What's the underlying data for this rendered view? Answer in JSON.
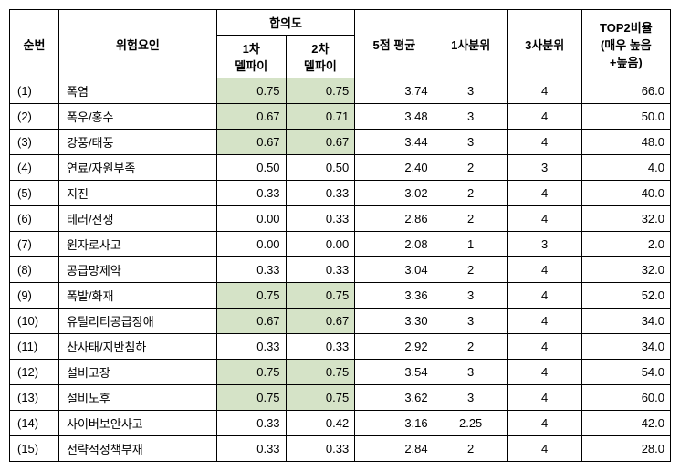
{
  "headers": {
    "num": "순번",
    "factor": "위험요인",
    "consensus": "합의도",
    "delphi1": "1차\n델파이",
    "delphi2": "2차\n델파이",
    "avg": "5점 평균",
    "q1": "1사분위",
    "q3": "3사분위",
    "top2": "TOP2비율\n(매우 높음\n+높음)"
  },
  "highlight_color": "#d5e3c7",
  "rows": [
    {
      "n": "(1)",
      "factor": "폭염",
      "d1": "0.75",
      "d2": "0.75",
      "avg": "3.74",
      "q1": "3",
      "q3": "4",
      "top2": "66.0",
      "hl1": true,
      "hl2": true
    },
    {
      "n": "(2)",
      "factor": "폭우/홍수",
      "d1": "0.67",
      "d2": "0.71",
      "avg": "3.48",
      "q1": "3",
      "q3": "4",
      "top2": "50.0",
      "hl1": true,
      "hl2": true
    },
    {
      "n": "(3)",
      "factor": "강풍/태풍",
      "d1": "0.67",
      "d2": "0.67",
      "avg": "3.44",
      "q1": "3",
      "q3": "4",
      "top2": "48.0",
      "hl1": true,
      "hl2": true
    },
    {
      "n": "(4)",
      "factor": "연료/자원부족",
      "d1": "0.50",
      "d2": "0.50",
      "avg": "2.40",
      "q1": "2",
      "q3": "3",
      "top2": "4.0",
      "hl1": false,
      "hl2": false
    },
    {
      "n": "(5)",
      "factor": "지진",
      "d1": "0.33",
      "d2": "0.33",
      "avg": "3.02",
      "q1": "2",
      "q3": "4",
      "top2": "40.0",
      "hl1": false,
      "hl2": false
    },
    {
      "n": "(6)",
      "factor": "테러/전쟁",
      "d1": "0.00",
      "d2": "0.33",
      "avg": "2.86",
      "q1": "2",
      "q3": "4",
      "top2": "32.0",
      "hl1": false,
      "hl2": false
    },
    {
      "n": "(7)",
      "factor": "원자로사고",
      "d1": "0.00",
      "d2": "0.00",
      "avg": "2.08",
      "q1": "1",
      "q3": "3",
      "top2": "2.0",
      "hl1": false,
      "hl2": false
    },
    {
      "n": "(8)",
      "factor": "공급망제약",
      "d1": "0.33",
      "d2": "0.33",
      "avg": "3.04",
      "q1": "2",
      "q3": "4",
      "top2": "32.0",
      "hl1": false,
      "hl2": false
    },
    {
      "n": "(9)",
      "factor": "폭발/화재",
      "d1": "0.75",
      "d2": "0.75",
      "avg": "3.36",
      "q1": "3",
      "q3": "4",
      "top2": "52.0",
      "hl1": true,
      "hl2": true
    },
    {
      "n": "(10)",
      "factor": "유틸리티공급장애",
      "d1": "0.67",
      "d2": "0.67",
      "avg": "3.30",
      "q1": "3",
      "q3": "4",
      "top2": "34.0",
      "hl1": true,
      "hl2": true
    },
    {
      "n": "(11)",
      "factor": "산사태/지반침하",
      "d1": "0.33",
      "d2": "0.33",
      "avg": "2.92",
      "q1": "2",
      "q3": "4",
      "top2": "34.0",
      "hl1": false,
      "hl2": false
    },
    {
      "n": "(12)",
      "factor": "설비고장",
      "d1": "0.75",
      "d2": "0.75",
      "avg": "3.54",
      "q1": "3",
      "q3": "4",
      "top2": "54.0",
      "hl1": true,
      "hl2": true
    },
    {
      "n": "(13)",
      "factor": "설비노후",
      "d1": "0.75",
      "d2": "0.75",
      "avg": "3.62",
      "q1": "3",
      "q3": "4",
      "top2": "60.0",
      "hl1": true,
      "hl2": true
    },
    {
      "n": "(14)",
      "factor": "사이버보안사고",
      "d1": "0.33",
      "d2": "0.42",
      "avg": "3.16",
      "q1": "2.25",
      "q3": "4",
      "top2": "42.0",
      "hl1": false,
      "hl2": false
    },
    {
      "n": "(15)",
      "factor": "전략적정책부재",
      "d1": "0.33",
      "d2": "0.33",
      "avg": "2.84",
      "q1": "2",
      "q3": "4",
      "top2": "28.0",
      "hl1": false,
      "hl2": false
    }
  ]
}
